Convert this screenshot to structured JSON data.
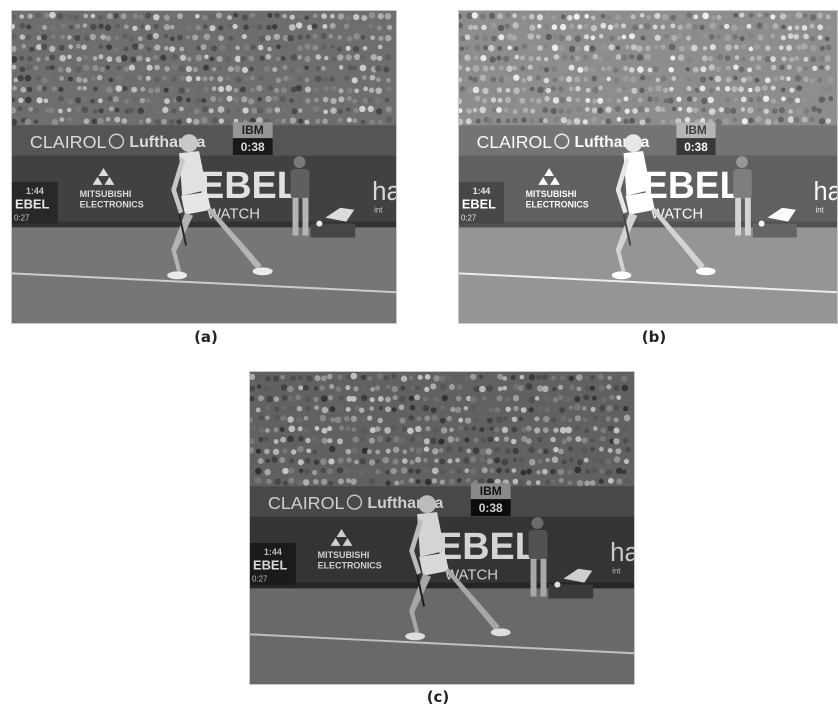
{
  "panels": [
    {
      "id": "a",
      "caption": "(a)",
      "brightness": 0.0
    },
    {
      "id": "b",
      "caption": "(b)",
      "brightness": 0.12
    },
    {
      "id": "c",
      "caption": "(c)",
      "brightness": -0.05
    }
  ],
  "scene": {
    "banner_left": "CLAIROL",
    "banner_mid": "Lufthansa",
    "ibm_label": "IBM",
    "clock_label": "0:38",
    "board_top": "1:44",
    "board_mid": "EBEL",
    "board_bottom": "0:27",
    "mitsubishi_line1": "MITSUBISHI",
    "mitsubishi_line2": "ELECTRONICS",
    "ebel_big": "EBEL",
    "ebel_watch": "WATCH",
    "right_logo": "ha",
    "right_logo_sub": "int"
  }
}
